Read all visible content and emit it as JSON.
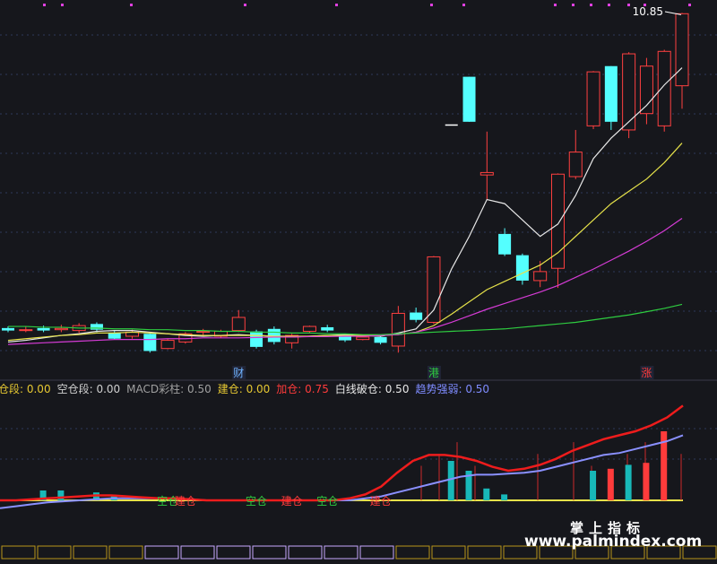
{
  "chart_data": [
    {
      "type": "candlestick",
      "title": "",
      "price_label": "10.85",
      "ylim": [
        2.5,
        11.0
      ],
      "candles": [
        {
          "o": 3.1,
          "c": 3.16,
          "h": 3.2,
          "l": 3.06,
          "dir": "down"
        },
        {
          "o": 3.1,
          "c": 3.12,
          "h": 3.2,
          "l": 3.06,
          "dir": "up"
        },
        {
          "o": 3.1,
          "c": 3.16,
          "h": 3.22,
          "l": 3.06,
          "dir": "down"
        },
        {
          "o": 3.12,
          "c": 3.15,
          "h": 3.24,
          "l": 3.06,
          "dir": "up"
        },
        {
          "o": 3.1,
          "c": 3.22,
          "h": 3.28,
          "l": 3.04,
          "dir": "up"
        },
        {
          "o": 3.26,
          "c": 3.12,
          "h": 3.3,
          "l": 3.06,
          "dir": "down"
        },
        {
          "o": 3.05,
          "c": 2.9,
          "h": 3.1,
          "l": 2.88,
          "dir": "down"
        },
        {
          "o": 2.96,
          "c": 3.06,
          "h": 3.12,
          "l": 2.9,
          "dir": "up"
        },
        {
          "o": 3.02,
          "c": 2.6,
          "h": 3.06,
          "l": 2.56,
          "dir": "down"
        },
        {
          "o": 2.66,
          "c": 2.86,
          "h": 2.9,
          "l": 2.64,
          "dir": "up"
        },
        {
          "o": 2.82,
          "c": 3.02,
          "h": 3.06,
          "l": 2.78,
          "dir": "up"
        },
        {
          "o": 3.06,
          "c": 3.08,
          "h": 3.14,
          "l": 2.98,
          "dir": "up"
        },
        {
          "o": 2.96,
          "c": 3.08,
          "h": 3.12,
          "l": 2.92,
          "dir": "up"
        },
        {
          "o": 3.1,
          "c": 3.42,
          "h": 3.6,
          "l": 3.06,
          "dir": "up"
        },
        {
          "o": 3.08,
          "c": 2.7,
          "h": 3.12,
          "l": 2.66,
          "dir": "down"
        },
        {
          "o": 3.14,
          "c": 2.82,
          "h": 3.2,
          "l": 2.76,
          "dir": "down"
        },
        {
          "o": 2.8,
          "c": 2.98,
          "h": 3.02,
          "l": 2.66,
          "dir": "up"
        },
        {
          "o": 3.08,
          "c": 3.2,
          "h": 3.22,
          "l": 3.04,
          "dir": "up"
        },
        {
          "o": 3.18,
          "c": 3.1,
          "h": 3.24,
          "l": 3.06,
          "dir": "down"
        },
        {
          "o": 2.98,
          "c": 2.86,
          "h": 3.0,
          "l": 2.82,
          "dir": "down"
        },
        {
          "o": 2.88,
          "c": 2.94,
          "h": 2.98,
          "l": 2.86,
          "dir": "up"
        },
        {
          "o": 2.94,
          "c": 2.8,
          "h": 2.96,
          "l": 2.76,
          "dir": "down"
        },
        {
          "o": 2.72,
          "c": 3.52,
          "h": 3.7,
          "l": 2.56,
          "dir": "up"
        },
        {
          "o": 3.54,
          "c": 3.36,
          "h": 3.66,
          "l": 3.3,
          "dir": "down"
        },
        {
          "o": 3.3,
          "c": 4.9,
          "h": 4.92,
          "l": 3.26,
          "dir": "up"
        },
        {
          "o": 8.12,
          "c": 8.12,
          "h": 8.12,
          "l": 8.12,
          "dir": "doji"
        },
        {
          "o": 9.3,
          "c": 8.2,
          "h": 9.3,
          "l": 8.2,
          "dir": "down"
        },
        {
          "o": 6.96,
          "c": 6.9,
          "h": 7.96,
          "l": 6.3,
          "dir": "up"
        },
        {
          "o": 5.46,
          "c": 4.96,
          "h": 5.6,
          "l": 4.92,
          "dir": "down"
        },
        {
          "o": 4.94,
          "c": 4.32,
          "h": 4.98,
          "l": 4.22,
          "dir": "down"
        },
        {
          "o": 4.32,
          "c": 4.54,
          "h": 4.8,
          "l": 4.16,
          "dir": "up"
        },
        {
          "o": 4.62,
          "c": 6.92,
          "h": 6.94,
          "l": 4.14,
          "dir": "up"
        },
        {
          "o": 6.86,
          "c": 7.46,
          "h": 8.0,
          "l": 6.8,
          "dir": "up"
        },
        {
          "o": 8.1,
          "c": 9.42,
          "h": 9.44,
          "l": 8.02,
          "dir": "up"
        },
        {
          "o": 9.56,
          "c": 8.2,
          "h": 9.56,
          "l": 8.0,
          "dir": "down"
        },
        {
          "o": 8.0,
          "c": 9.86,
          "h": 9.9,
          "l": 7.8,
          "dir": "up"
        },
        {
          "o": 8.4,
          "c": 9.56,
          "h": 9.76,
          "l": 8.14,
          "dir": "up"
        },
        {
          "o": 8.1,
          "c": 9.92,
          "h": 9.96,
          "l": 7.96,
          "dir": "up"
        },
        {
          "o": 9.08,
          "c": 10.84,
          "h": 10.86,
          "l": 8.52,
          "dir": "up"
        }
      ],
      "ma_lines": [
        {
          "color": "#e8e8e8",
          "values": [
            2.82,
            2.86,
            2.92,
            2.98,
            3.02,
            3.08,
            3.1,
            3.1,
            3.06,
            3.02,
            2.98,
            2.96,
            2.98,
            3.0,
            2.98,
            2.96,
            2.94,
            2.96,
            2.98,
            3.0,
            2.98,
            2.96,
            3.04,
            3.14,
            3.6,
            4.6,
            5.4,
            6.3,
            6.2,
            5.8,
            5.4,
            5.7,
            6.4,
            7.3,
            7.8,
            8.2,
            8.6,
            9.1,
            9.52
          ]
        },
        {
          "color": "#e6e24a",
          "values": [
            2.86,
            2.9,
            2.94,
            2.98,
            3.0,
            3.04,
            3.04,
            3.06,
            3.04,
            3.02,
            3.0,
            2.98,
            2.98,
            2.98,
            2.98,
            2.96,
            2.96,
            2.96,
            2.98,
            2.98,
            2.98,
            2.98,
            3.0,
            3.06,
            3.22,
            3.5,
            3.8,
            4.1,
            4.3,
            4.5,
            4.7,
            5.0,
            5.4,
            5.8,
            6.2,
            6.5,
            6.8,
            7.2,
            7.68
          ]
        },
        {
          "color": "#d53bd5",
          "values": [
            2.76,
            2.78,
            2.8,
            2.82,
            2.84,
            2.86,
            2.88,
            2.88,
            2.88,
            2.9,
            2.9,
            2.92,
            2.92,
            2.92,
            2.93,
            2.94,
            2.94,
            2.95,
            2.95,
            2.96,
            2.96,
            2.98,
            3.0,
            3.06,
            3.16,
            3.3,
            3.46,
            3.62,
            3.76,
            3.9,
            4.04,
            4.2,
            4.4,
            4.6,
            4.82,
            5.04,
            5.28,
            5.54,
            5.84
          ]
        },
        {
          "color": "#2ecc40",
          "values": [
            3.2,
            3.2,
            3.18,
            3.18,
            3.16,
            3.16,
            3.14,
            3.14,
            3.12,
            3.12,
            3.1,
            3.1,
            3.08,
            3.08,
            3.06,
            3.06,
            3.04,
            3.04,
            3.02,
            3.02,
            3.0,
            3.0,
            3.02,
            3.04,
            3.06,
            3.08,
            3.1,
            3.12,
            3.14,
            3.18,
            3.22,
            3.26,
            3.3,
            3.36,
            3.42,
            3.48,
            3.56,
            3.64,
            3.74
          ]
        }
      ],
      "event_labels": [
        {
          "index": 13,
          "text": "财",
          "color": "#6fb3ff"
        },
        {
          "index": 24,
          "text": "港",
          "color": "#2ecc40"
        },
        {
          "index": 36,
          "text": "涨",
          "color": "#ff3b3b"
        }
      ]
    },
    {
      "type": "indicator",
      "legend": [
        {
          "label": "仓段",
          "value": "0.00",
          "color": "#e6c832"
        },
        {
          "label": "空仓段",
          "value": "0.00",
          "color": "#d0d0d0"
        },
        {
          "label": "MACD彩柱",
          "value": "0.50",
          "color": "#a0a0a0"
        },
        {
          "label": "建仓",
          "value": "0.00",
          "color": "#e6c832"
        },
        {
          "label": "加仓",
          "value": "0.75",
          "color": "#ff3b3b"
        },
        {
          "label": "白线破仓",
          "value": "0.50",
          "color": "#e8e8e8"
        },
        {
          "label": "趋势强弱",
          "value": "0.50",
          "color": "#7f8cff"
        }
      ],
      "ylim": [
        -0.2,
        1.0
      ],
      "red_line": [
        0.0,
        0.0,
        0.01,
        0.02,
        0.03,
        0.04,
        0.05,
        0.05,
        0.04,
        0.03,
        0.02,
        0.02,
        0.01,
        0.0,
        0.0,
        0.0,
        0.0,
        0.0,
        0.0,
        0.0,
        0.0,
        0.0,
        0.02,
        0.06,
        0.14,
        0.28,
        0.4,
        0.46,
        0.46,
        0.44,
        0.4,
        0.34,
        0.3,
        0.32,
        0.36,
        0.42,
        0.5,
        0.56,
        0.62,
        0.66,
        0.7,
        0.76,
        0.84,
        0.96
      ],
      "blue_line": [
        -0.08,
        -0.06,
        -0.04,
        -0.02,
        -0.01,
        0.0,
        0.01,
        0.02,
        0.02,
        0.02,
        0.02,
        0.02,
        0.01,
        0.0,
        0.0,
        0.0,
        0.0,
        0.0,
        0.0,
        0.0,
        0.0,
        0.0,
        0.0,
        0.02,
        0.04,
        0.08,
        0.12,
        0.16,
        0.2,
        0.24,
        0.26,
        0.26,
        0.27,
        0.28,
        0.3,
        0.34,
        0.38,
        0.42,
        0.46,
        0.48,
        0.52,
        0.56,
        0.6,
        0.66
      ],
      "bars": [
        {
          "index": 2,
          "value": 0.1,
          "color": "#18b8b8"
        },
        {
          "index": 3,
          "value": 0.1,
          "color": "#18b8b8"
        },
        {
          "index": 5,
          "value": 0.08,
          "color": "#18b8b8"
        },
        {
          "index": 6,
          "value": 0.04,
          "color": "#18b8b8"
        },
        {
          "index": 25,
          "value": 0.4,
          "color": "#18b8b8"
        },
        {
          "index": 26,
          "value": 0.3,
          "color": "#18b8b8"
        },
        {
          "index": 27,
          "value": 0.12,
          "color": "#18b8b8"
        },
        {
          "index": 28,
          "value": 0.06,
          "color": "#18b8b8"
        },
        {
          "index": 33,
          "value": 0.3,
          "color": "#18b8b8"
        },
        {
          "index": 34,
          "value": 0.32,
          "color": "#ff3b3b"
        },
        {
          "index": 35,
          "value": 0.36,
          "color": "#18b8b8"
        },
        {
          "index": 36,
          "value": 0.38,
          "color": "#ff3b3b"
        },
        {
          "index": 37,
          "value": 0.7,
          "color": "#ff3b3b"
        }
      ],
      "signals": [
        {
          "index": 9,
          "text": "空仓",
          "color": "#2ecc40"
        },
        {
          "index": 10,
          "text": "建仓",
          "color": "#ff3b3b"
        },
        {
          "index": 14,
          "text": "空仓",
          "color": "#2ecc40"
        },
        {
          "index": 16,
          "text": "建仓",
          "color": "#ff3b3b"
        },
        {
          "index": 18,
          "text": "空仓",
          "color": "#2ecc40"
        },
        {
          "index": 21,
          "text": "建仓",
          "color": "#ff3b3b"
        }
      ]
    }
  ],
  "watermark": {
    "title": "掌上指标",
    "url": "www.palmindex.com"
  }
}
